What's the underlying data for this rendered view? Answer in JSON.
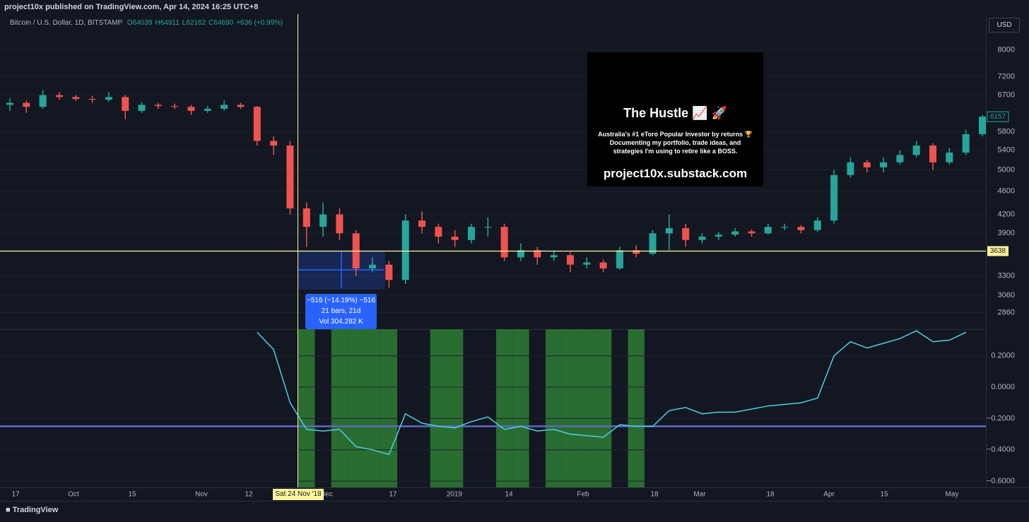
{
  "header": "project10x published on TradingView.com, Apr 14, 2024 16:25 UTC+8",
  "chart_data": {
    "type": "candlestick",
    "symbol": "Bitcoin / U.S. Dollar, 1D, BITSTAMP",
    "legend_values": [
      "O64039",
      "H64911",
      "L62162",
      "C64690",
      "+636 (+0.99%)"
    ],
    "currency": "USD",
    "log_scale": true,
    "up_color": "#26a69a",
    "down_color": "#ef5350",
    "open": [
      6450,
      6500,
      6400,
      6700,
      6650,
      6600,
      6580,
      6650,
      6300,
      6450,
      6420,
      6400,
      6300,
      6350,
      6450,
      6400,
      5600,
      5500,
      4300,
      4000,
      4200,
      3900,
      3400,
      3450,
      3250,
      4100,
      4000,
      3850,
      3800,
      4000,
      4000,
      3550,
      3650,
      3550,
      3580,
      3450,
      3480,
      3400,
      3650,
      3600,
      3900,
      3980,
      3800,
      3850,
      3880,
      3930,
      3900,
      4000,
      4000,
      3950,
      4100,
      4900,
      5150,
      5050,
      5150,
      5300,
      5500,
      5150,
      5350,
      5750
    ],
    "high": [
      6620,
      6560,
      6830,
      6780,
      6700,
      6680,
      6780,
      6700,
      6520,
      6500,
      6480,
      6450,
      6420,
      6560,
      6500,
      6420,
      5700,
      5600,
      4400,
      4400,
      4300,
      3950,
      3550,
      3500,
      4200,
      4250,
      4050,
      3950,
      4050,
      4150,
      4050,
      3750,
      3700,
      3650,
      3620,
      3550,
      3520,
      3700,
      3720,
      3950,
      4200,
      4050,
      3900,
      3920,
      3980,
      3960,
      4050,
      4050,
      4030,
      4150,
      5000,
      5250,
      5200,
      5250,
      5400,
      5600,
      5550,
      5450,
      5850,
      6200
    ],
    "low": [
      6300,
      6250,
      6350,
      6580,
      6550,
      6500,
      6520,
      6100,
      6250,
      6350,
      6350,
      6200,
      6250,
      6300,
      6350,
      5500,
      5300,
      4200,
      3700,
      3850,
      3800,
      3300,
      3350,
      3150,
      3200,
      3900,
      3750,
      3700,
      3750,
      3850,
      3500,
      3500,
      3450,
      3500,
      3350,
      3400,
      3350,
      3380,
      3550,
      3580,
      3650,
      3700,
      3750,
      3800,
      3850,
      3850,
      3880,
      3950,
      3900,
      3920,
      4050,
      4850,
      4950,
      4950,
      5100,
      5250,
      5000,
      5100,
      5300,
      5700
    ],
    "close": [
      6500,
      6400,
      6700,
      6650,
      6600,
      6580,
      6650,
      6300,
      6450,
      6420,
      6400,
      6300,
      6350,
      6450,
      6400,
      5600,
      5500,
      4300,
      4000,
      4200,
      3900,
      3400,
      3450,
      3250,
      4100,
      4000,
      3850,
      3800,
      4000,
      4000,
      3550,
      3650,
      3550,
      3580,
      3450,
      3480,
      3400,
      3650,
      3600,
      3900,
      3980,
      3800,
      3850,
      3880,
      3930,
      3900,
      4000,
      4000,
      3950,
      4100,
      4900,
      5150,
      5050,
      5150,
      5300,
      5500,
      5150,
      5350,
      5750,
      6157
    ],
    "ylim": [
      2680,
      9200
    ],
    "yticks": [
      2860,
      3060,
      3300,
      3900,
      4200,
      4600,
      5000,
      5400,
      5800,
      6700,
      7200,
      8000
    ],
    "hline": {
      "value": 3638,
      "color": "#fff59d"
    },
    "x_labels": [
      "17",
      "Oct",
      "15",
      "Nov",
      "12",
      "Dec",
      "17",
      "2019",
      "14",
      "Feb",
      "18",
      "Mar",
      "18",
      "Apr",
      "15",
      "May"
    ],
    "crosshair_label": "Sat 24 Nov '18",
    "measure": [
      "−516 (−14.19%) −516",
      "21 bars, 21d",
      "Vol 304.282 K"
    ],
    "indicator": {
      "color": "#4dd0e1",
      "values": [
        null,
        null,
        null,
        null,
        null,
        null,
        null,
        null,
        null,
        null,
        null,
        null,
        null,
        null,
        null,
        0.35,
        0.24,
        -0.1,
        -0.27,
        -0.28,
        -0.27,
        -0.38,
        -0.4,
        -0.43,
        -0.17,
        -0.23,
        -0.25,
        -0.26,
        -0.22,
        -0.19,
        -0.27,
        -0.25,
        -0.28,
        -0.27,
        -0.3,
        -0.31,
        -0.32,
        -0.24,
        -0.25,
        -0.25,
        -0.15,
        -0.13,
        -0.17,
        -0.16,
        -0.16,
        -0.14,
        -0.12,
        -0.11,
        -0.1,
        -0.07,
        0.2,
        0.29,
        0.25,
        0.28,
        0.31,
        0.36,
        0.29,
        0.3,
        0.35,
        null
      ],
      "ylim": [
        -0.64,
        0.37
      ],
      "yticks": [
        {
          "value": 0.2,
          "label": "0.2000"
        },
        {
          "value": 0,
          "label": "0.0000"
        },
        {
          "value": -0.2,
          "label": "−0.2000"
        },
        {
          "value": -0.4,
          "label": "−0.4000"
        },
        {
          "value": -0.6,
          "label": "−0.6000"
        }
      ],
      "threshold": -0.25,
      "threshold_color": "#5c6bc0",
      "signal": [
        false,
        false,
        false,
        false,
        false,
        false,
        false,
        false,
        false,
        false,
        false,
        false,
        false,
        false,
        false,
        false,
        false,
        false,
        true,
        false,
        true,
        true,
        true,
        true,
        false,
        false,
        true,
        true,
        false,
        false,
        true,
        true,
        false,
        true,
        true,
        true,
        true,
        false,
        true,
        false,
        false,
        false,
        false,
        false,
        false,
        false,
        false,
        false,
        false,
        false,
        false,
        false,
        false,
        false,
        false,
        false,
        false,
        false,
        false,
        false
      ],
      "signal_color": "#2e7d32"
    }
  },
  "promo": {
    "title": "The Hustle 📈 🚀",
    "lines": [
      "Australia's #1 eToro Popular Investor by returns 🏆",
      "Documenting my portfolio, trade ideas, and",
      "strategies I'm using to retire like a BOSS."
    ],
    "url": "project10x.substack.com"
  },
  "footer": "TradingView"
}
